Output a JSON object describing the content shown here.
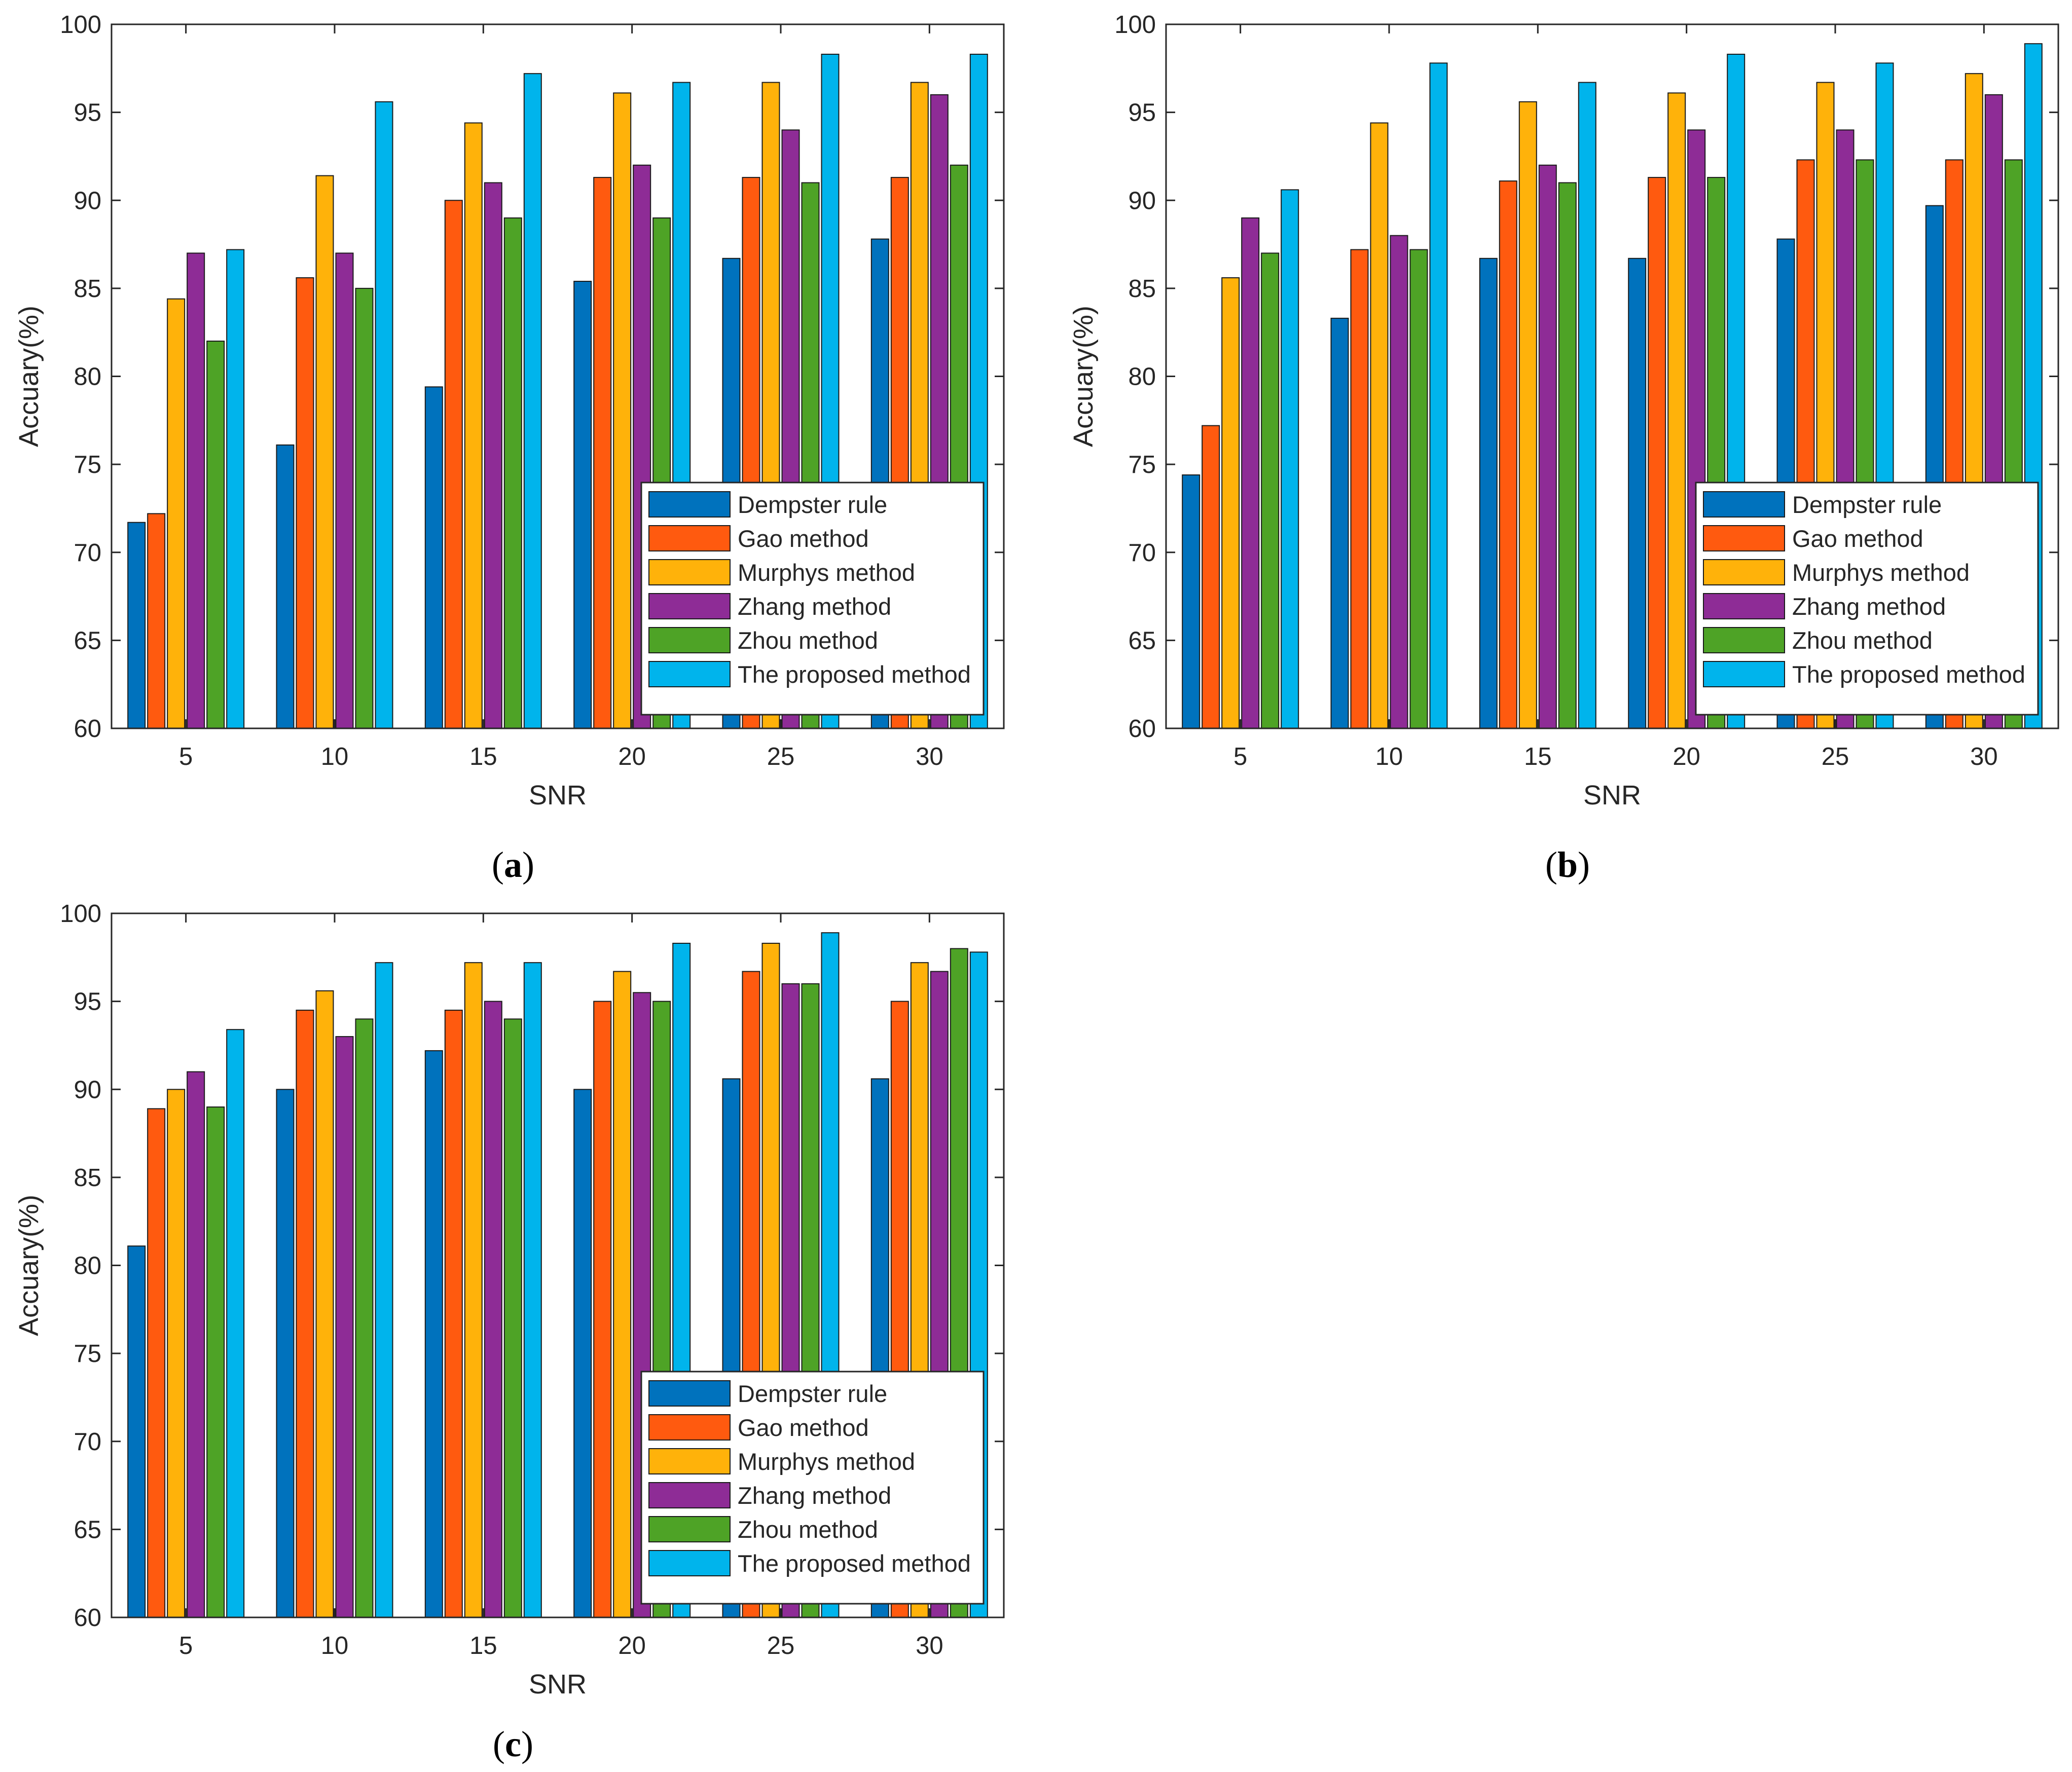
{
  "legend_labels": [
    "Dempster rule",
    "Gao method",
    "Murphys method",
    "Zhang method",
    "Zhou method",
    "The proposed method"
  ],
  "series_colors": [
    "#0072BD",
    "#FF5A0F",
    "#FFB20A",
    "#8E2C96",
    "#4EA326",
    "#00B4EC"
  ],
  "chart_data": [
    {
      "type": "bar",
      "panel": "(a)",
      "panel_letter": "a",
      "xlabel": "SNR",
      "ylabel": "Accuary(%)",
      "categories": [
        "5",
        "10",
        "15",
        "20",
        "25",
        "30"
      ],
      "ylim": [
        60,
        100
      ],
      "yticks": [
        "60",
        "65",
        "70",
        "75",
        "80",
        "85",
        "90",
        "95",
        "100"
      ],
      "legend_position": "bottom-right",
      "series": [
        {
          "name": "Dempster rule",
          "values": [
            71.7,
            76.1,
            79.4,
            85.4,
            86.7,
            87.8
          ]
        },
        {
          "name": "Gao method",
          "values": [
            72.2,
            85.6,
            90.0,
            91.3,
            91.3,
            91.3
          ]
        },
        {
          "name": "Murphys method",
          "values": [
            84.4,
            91.4,
            94.4,
            96.1,
            96.7,
            96.7
          ]
        },
        {
          "name": "Zhang method",
          "values": [
            87.0,
            87.0,
            91.0,
            92.0,
            94.0,
            96.0
          ]
        },
        {
          "name": "Zhou method",
          "values": [
            82.0,
            85.0,
            89.0,
            89.0,
            91.0,
            92.0
          ]
        },
        {
          "name": "The proposed method",
          "values": [
            87.2,
            95.6,
            97.2,
            96.7,
            98.3,
            98.3
          ]
        }
      ]
    },
    {
      "type": "bar",
      "panel": "(b)",
      "panel_letter": "b",
      "xlabel": "SNR",
      "ylabel": "Accuary(%)",
      "categories": [
        "5",
        "10",
        "15",
        "20",
        "25",
        "30"
      ],
      "ylim": [
        60,
        100
      ],
      "yticks": [
        "60",
        "65",
        "70",
        "75",
        "80",
        "85",
        "90",
        "95",
        "100"
      ],
      "legend_position": "bottom-right",
      "series": [
        {
          "name": "Dempster rule",
          "values": [
            74.4,
            83.3,
            86.7,
            86.7,
            87.8,
            89.7
          ]
        },
        {
          "name": "Gao method",
          "values": [
            77.2,
            87.2,
            91.1,
            91.3,
            92.3,
            92.3
          ]
        },
        {
          "name": "Murphys method",
          "values": [
            85.6,
            94.4,
            95.6,
            96.1,
            96.7,
            97.2
          ]
        },
        {
          "name": "Zhang method",
          "values": [
            89.0,
            88.0,
            92.0,
            94.0,
            94.0,
            96.0
          ]
        },
        {
          "name": "Zhou method",
          "values": [
            87.0,
            87.2,
            91.0,
            91.3,
            92.3,
            92.3
          ]
        },
        {
          "name": "The proposed method",
          "values": [
            90.6,
            97.8,
            96.7,
            98.3,
            97.8,
            98.9
          ]
        }
      ]
    },
    {
      "type": "bar",
      "panel": "(c)",
      "panel_letter": "c",
      "xlabel": "SNR",
      "ylabel": "Accuary(%)",
      "categories": [
        "5",
        "10",
        "15",
        "20",
        "25",
        "30"
      ],
      "ylim": [
        60,
        100
      ],
      "yticks": [
        "60",
        "65",
        "70",
        "75",
        "80",
        "85",
        "90",
        "95",
        "100"
      ],
      "legend_position": "bottom-right",
      "series": [
        {
          "name": "Dempster rule",
          "values": [
            81.1,
            90.0,
            92.2,
            90.0,
            90.6,
            90.6
          ]
        },
        {
          "name": "Gao method",
          "values": [
            88.9,
            94.5,
            94.5,
            95.0,
            96.7,
            95.0
          ]
        },
        {
          "name": "Murphys method",
          "values": [
            90.0,
            95.6,
            97.2,
            96.7,
            98.3,
            97.2
          ]
        },
        {
          "name": "Zhang method",
          "values": [
            91.0,
            93.0,
            95.0,
            95.5,
            96.0,
            96.7
          ]
        },
        {
          "name": "Zhou method",
          "values": [
            89.0,
            94.0,
            94.0,
            95.0,
            96.0,
            98.0
          ]
        },
        {
          "name": "The proposed method",
          "values": [
            93.4,
            97.2,
            97.2,
            98.3,
            98.9,
            97.8
          ]
        }
      ]
    }
  ]
}
